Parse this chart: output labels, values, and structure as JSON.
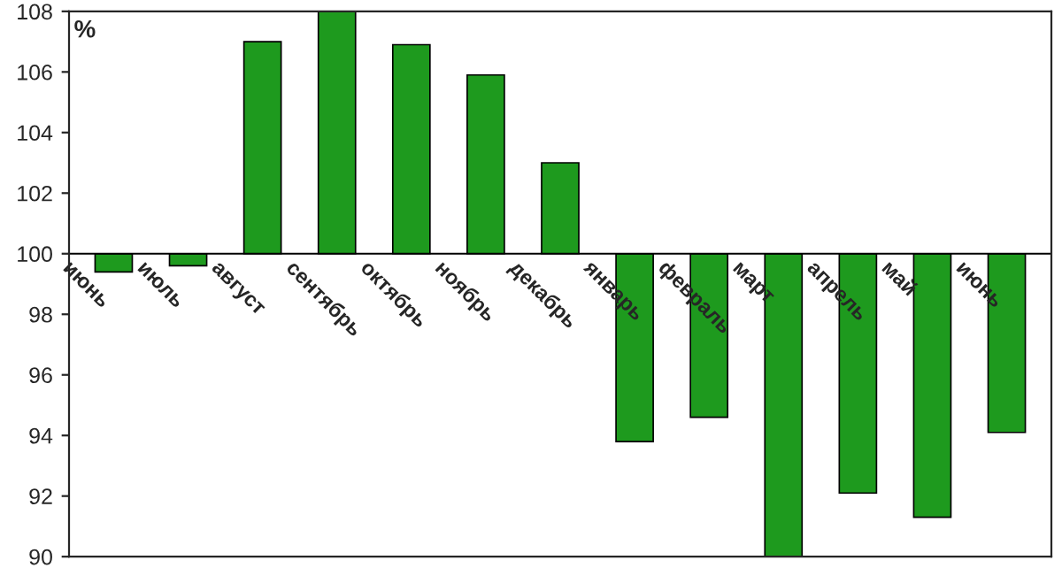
{
  "chart_data": {
    "type": "bar",
    "categories": [
      "июнь",
      "июль",
      "август",
      "сентябрь",
      "октябрь",
      "ноябрь",
      "декабрь",
      "январь",
      "февраль",
      "март",
      "апрель",
      "май",
      "июнь"
    ],
    "base": [
      100,
      100,
      100,
      100,
      100,
      100,
      100,
      100,
      100,
      100,
      100,
      100,
      100
    ],
    "values": [
      -0.6,
      -0.4,
      7.0,
      8.0,
      6.9,
      5.9,
      3.0,
      -6.2,
      -5.4,
      -10.0,
      -7.9,
      -8.7,
      -5.9
    ],
    "color": "#1e9a1e",
    "ylim": [
      90,
      108
    ],
    "yticks": [
      90,
      92,
      94,
      96,
      98,
      100,
      102,
      104,
      106,
      108
    ],
    "annotations": [
      "%"
    ],
    "grid": false,
    "legend": false
  }
}
